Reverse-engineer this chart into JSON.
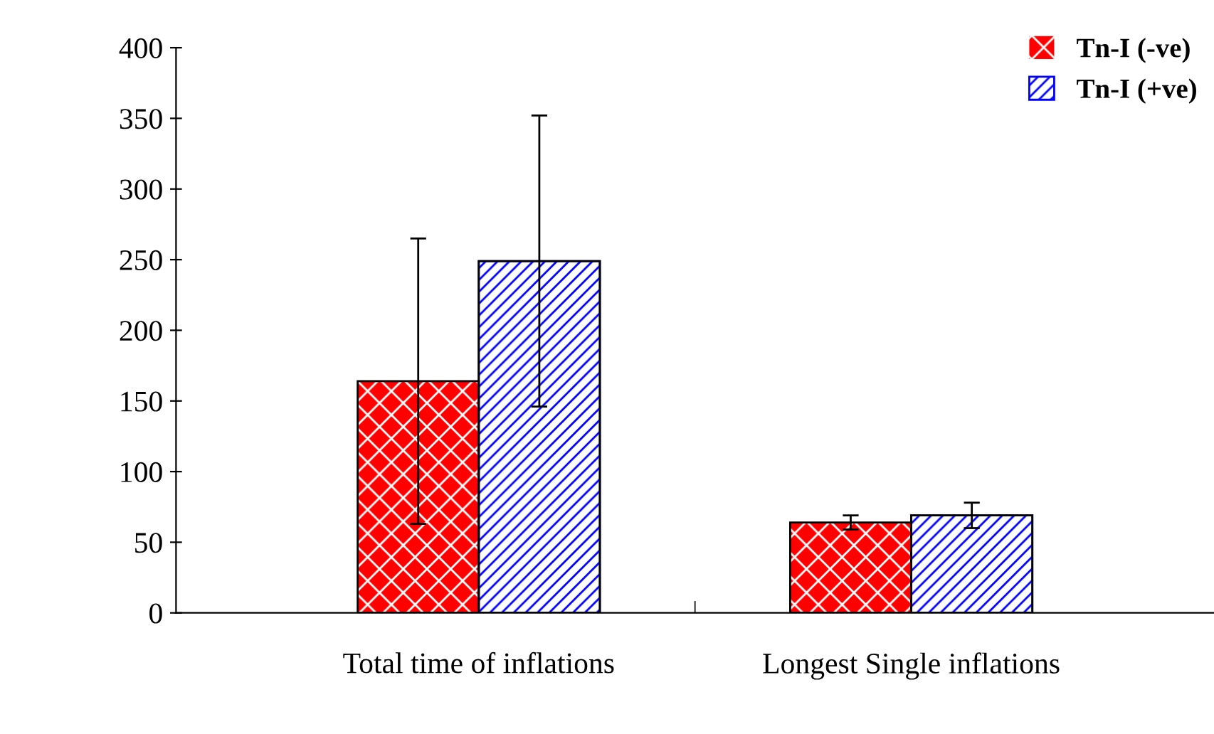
{
  "chart_data": {
    "type": "bar",
    "categories": [
      "Total time of inflations",
      "Longest Single inflations"
    ],
    "series": [
      {
        "name": "Tn-I (-ve)",
        "color": "#ff0000",
        "values": [
          164,
          64
        ],
        "errors": [
          101,
          5
        ]
      },
      {
        "name": "Tn-I (+ve)",
        "color": "#0000ff",
        "values": [
          249,
          69
        ],
        "errors": [
          103,
          9
        ]
      }
    ],
    "ylim": [
      0,
      400
    ],
    "yticks": [
      0,
      50,
      100,
      150,
      200,
      250,
      300,
      350,
      400
    ],
    "legend": "top right",
    "grid": false
  }
}
